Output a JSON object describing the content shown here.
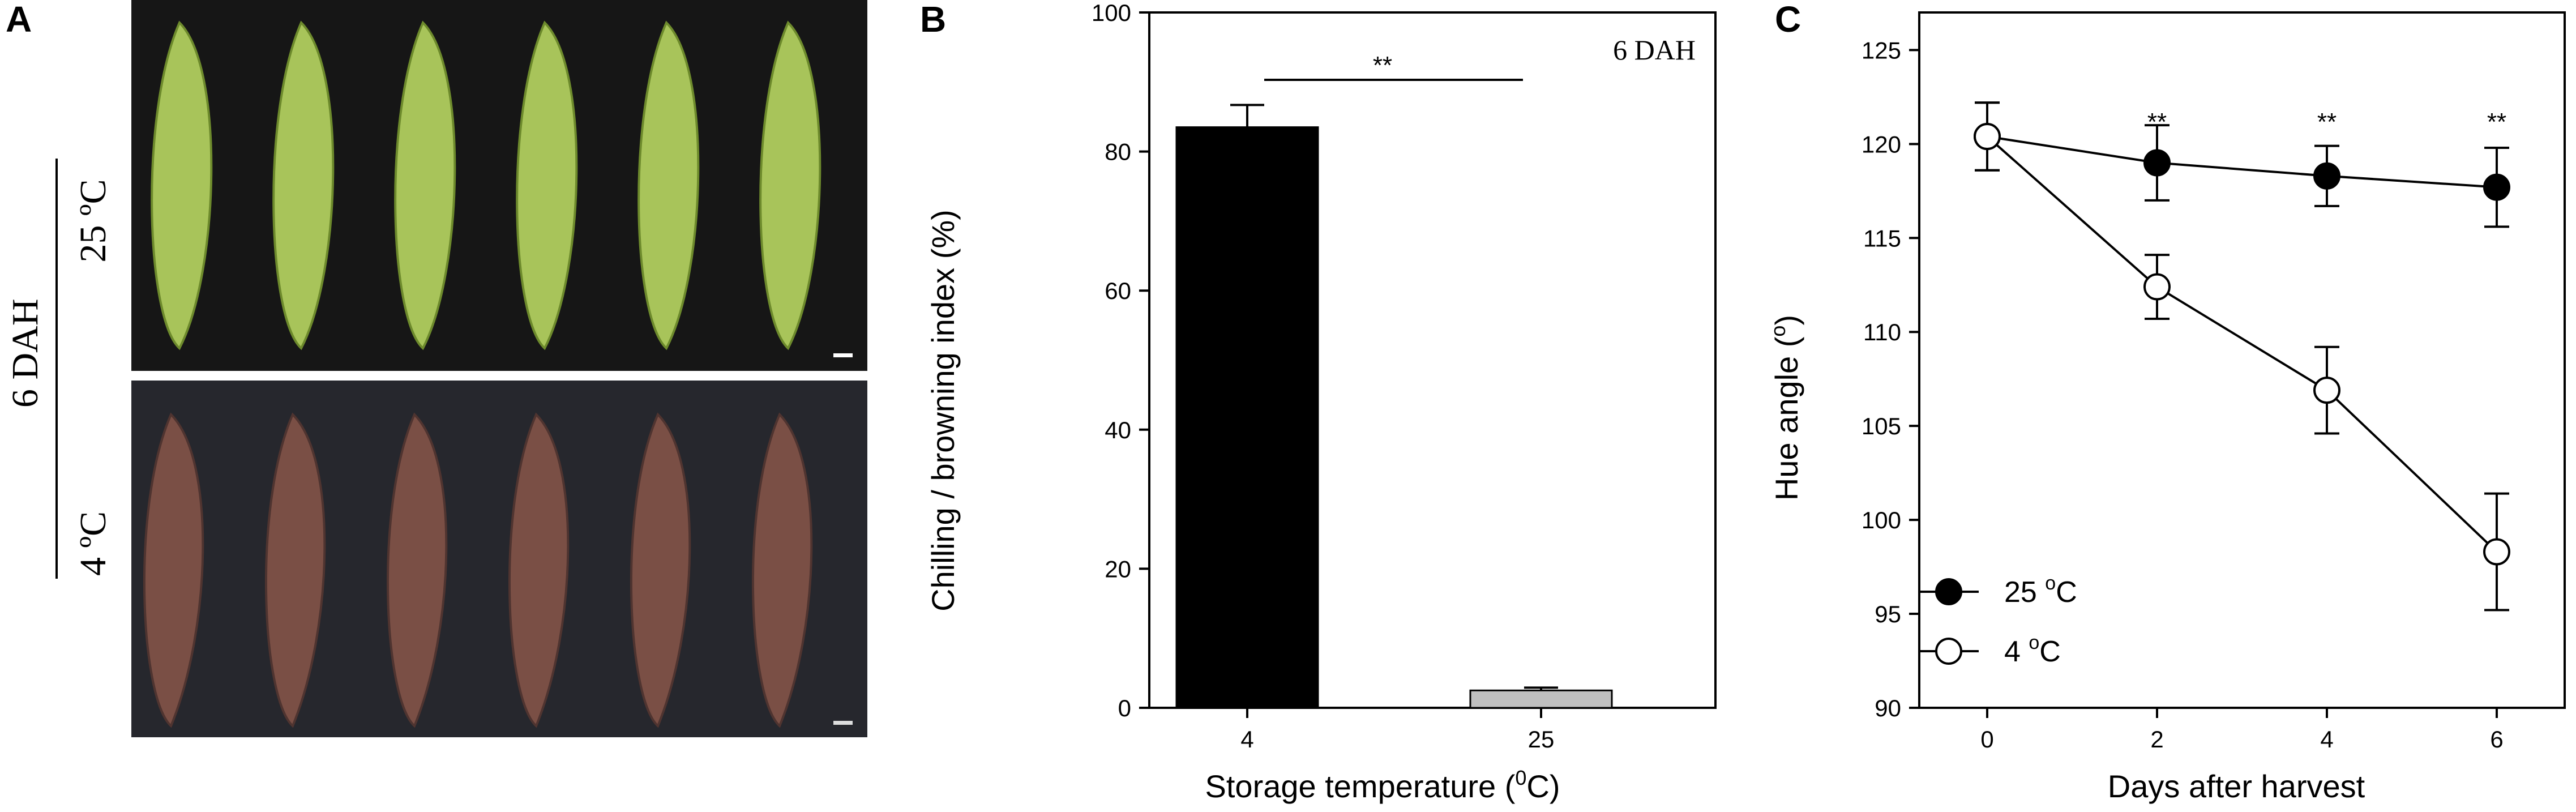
{
  "panels": {
    "a": {
      "letter": "A",
      "group_label": "6 DAH",
      "top_label": "25 ºC",
      "bottom_label": "4 ºC"
    },
    "b": {
      "letter": "B"
    },
    "c": {
      "letter": "C"
    }
  },
  "colors": {
    "bar_4C": "#000000",
    "bar_25C": "#c0c0c0",
    "banana_green": "#a8c45a",
    "banana_brown": "#7a4f45"
  },
  "chart_data": [
    {
      "type": "bar",
      "annotation": "6 DAH",
      "xlabel_main": "Storage temperature (",
      "xlabel_sup": "0",
      "xlabel_end": "C)",
      "ylabel": "Chilling / browning index (%)",
      "categories": [
        "4",
        "25"
      ],
      "values": [
        83.5,
        2.5
      ],
      "errors": [
        3.2,
        0.4
      ],
      "ylim": [
        0,
        100
      ],
      "yticks": [
        0,
        20,
        40,
        60,
        80,
        100
      ],
      "significance": "**",
      "grid": false
    },
    {
      "type": "line",
      "xlabel": "Days after harvest",
      "ylabel": "Hue angle (",
      "ylabel_sup": "o",
      "ylabel_end": ")",
      "x": [
        0,
        2,
        4,
        6
      ],
      "xticks": [
        0,
        2,
        4,
        6
      ],
      "xlim": [
        -0.8,
        6.8
      ],
      "ylim": [
        90,
        127
      ],
      "yticks": [
        90,
        95,
        100,
        105,
        110,
        115,
        120,
        125
      ],
      "grid": false,
      "legend_position": "bottom-left",
      "series": [
        {
          "name": "25 ",
          "name_sup": "o",
          "name_end": "C",
          "marker": "filled",
          "values": [
            120.4,
            119.0,
            118.3,
            117.7
          ],
          "errors": [
            1.8,
            2.0,
            1.6,
            2.1
          ]
        },
        {
          "name": "4 ",
          "name_sup": "o",
          "name_end": "C",
          "marker": "open",
          "values": [
            120.4,
            112.4,
            106.9,
            98.3
          ],
          "errors": [
            1.8,
            1.7,
            2.3,
            3.1
          ]
        }
      ],
      "significance": [
        "",
        "**",
        "**",
        "**"
      ]
    }
  ]
}
